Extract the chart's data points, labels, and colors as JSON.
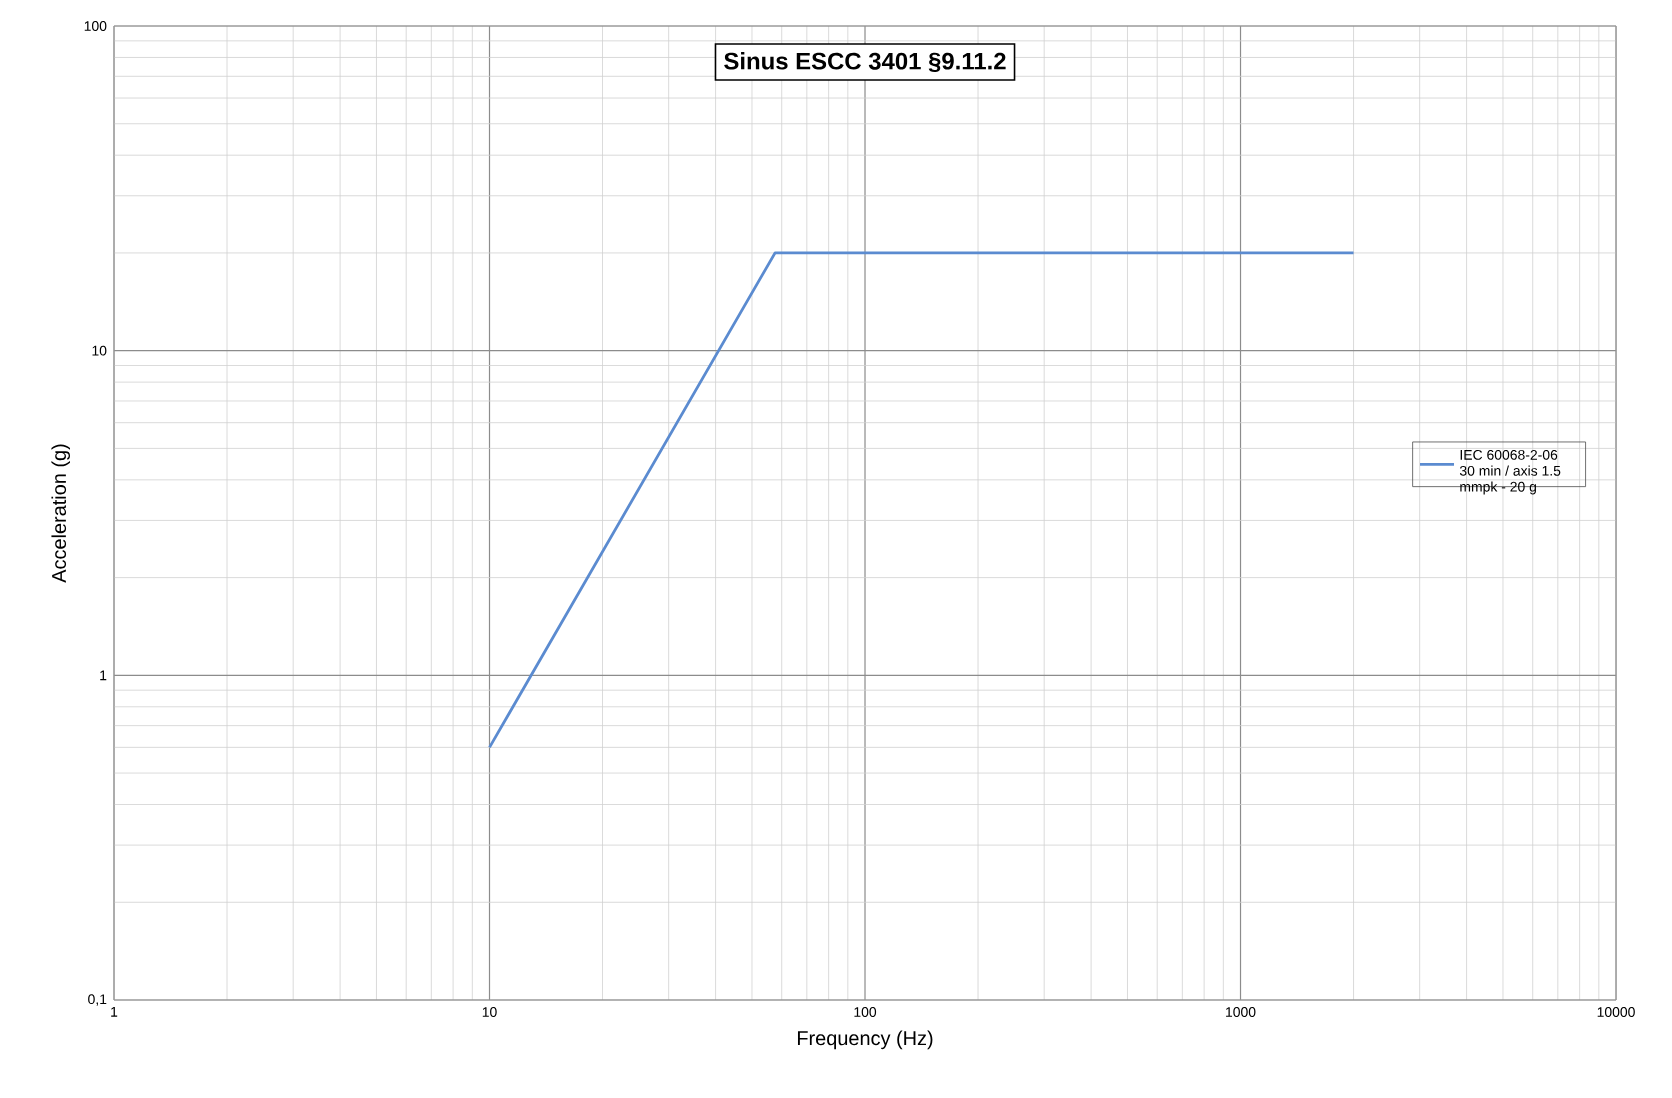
{
  "chart_data": {
    "type": "line",
    "title": "Sinus ESCC 3401 §9.11.2",
    "xlabel": "Frequency (Hz)",
    "ylabel": "Acceleration (g)",
    "log": "xy",
    "grid": true,
    "legend": "right",
    "marker": "none",
    "line_style": "solid",
    "xlim": [
      1,
      10000
    ],
    "ylim": [
      0.1,
      100
    ],
    "xticks": [
      1,
      10,
      100,
      1000,
      10000
    ],
    "yticks": [
      {
        "value": 0.1,
        "label": "0,1"
      },
      1,
      10,
      100
    ],
    "x": [
      10,
      57.6,
      2000
    ],
    "series": [
      {
        "name": "IEC 60068-2-06 30 min / axis 1.5 mmpk - 20 g",
        "color": "#5b8bd0",
        "values": [
          0.6,
          20,
          20
        ]
      }
    ]
  }
}
